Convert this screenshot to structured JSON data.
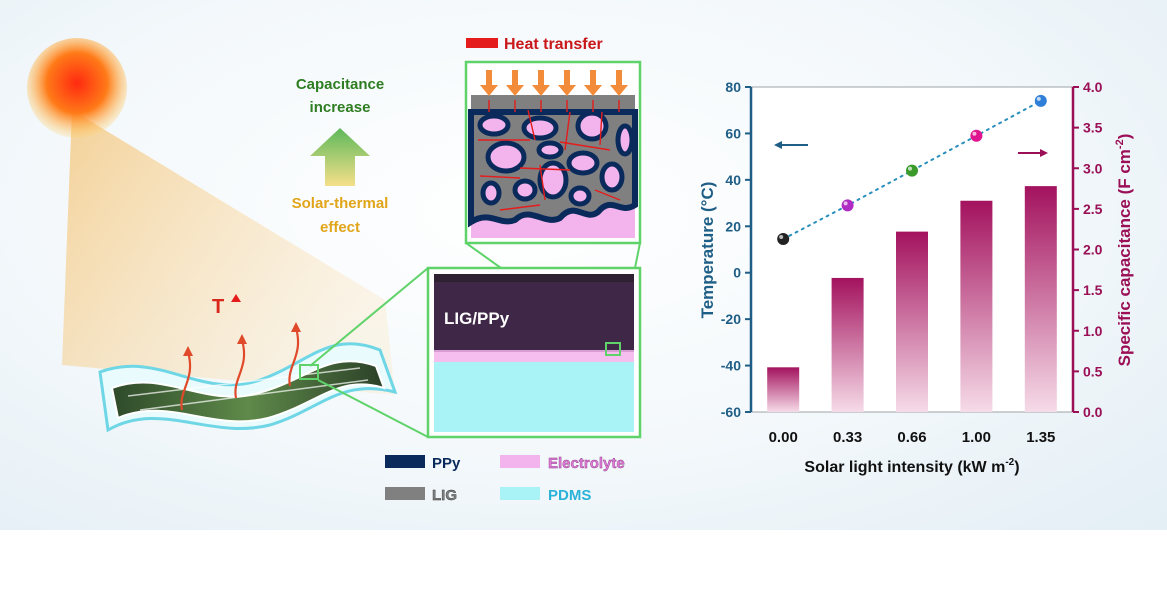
{
  "colors": {
    "ppy": "#0b2a5c",
    "lig": "#808080",
    "electrolyte": "#f3b3ec",
    "pdms": "#a9f2f5",
    "temp_axis": "#1f5e86",
    "cap_axis": "#9a0f55",
    "heat": "#e51c1c",
    "green_box": "#5fd36a"
  },
  "labels": {
    "heat_transfer": "Heat transfer",
    "capacitance_increase_line1": "Capacitance",
    "capacitance_increase_line2": "increase",
    "solar_thermal_line1": "Solar-thermal",
    "solar_thermal_line2": "effect",
    "temperature_rise": "T",
    "lig_ppy": "LIG/PPy"
  },
  "legend": [
    {
      "label": "PPy",
      "color": "#0b2a5c"
    },
    {
      "label": "Electrolyte",
      "color": "#f3b3ec"
    },
    {
      "label": "LIG",
      "color": "#808080"
    },
    {
      "label": "PDMS",
      "color": "#a9f2f5"
    }
  ],
  "icons": [
    "sun-icon",
    "up-arrow-icon",
    "heat-arrow-icon"
  ],
  "chart_data": {
    "type": "bar",
    "xlabel_main": "Solar light intensity (kW m",
    "xlabel_sup": "-2",
    "xlabel_close": ")",
    "categories": [
      "0.00",
      "0.33",
      "0.66",
      "1.00",
      "1.35"
    ],
    "y_left": {
      "label": "Temperature (°C)",
      "lim": [
        -60,
        80
      ],
      "ticks": [
        "80",
        "60",
        "40",
        "20",
        "0",
        "-20",
        "-40",
        "-60"
      ]
    },
    "y_right": {
      "label_main": "Specific capacitance (F cm",
      "label_sup": "-2",
      "label_close": ")",
      "lim": [
        0.0,
        4.0
      ],
      "ticks": [
        "4.0",
        "3.5",
        "3.0",
        "2.5",
        "2.0",
        "1.5",
        "1.0",
        "0.5",
        "0.0"
      ]
    },
    "series": [
      {
        "axis": "right",
        "kind": "bar",
        "values": [
          0.55,
          1.65,
          2.22,
          2.6,
          2.78
        ]
      },
      {
        "axis": "left",
        "kind": "scatter",
        "values": [
          14.5,
          29,
          44,
          59,
          74
        ],
        "point_colors": [
          "#222222",
          "#b02bc4",
          "#3a9a2a",
          "#e0148e",
          "#2f7fd8"
        ]
      }
    ],
    "grid": false
  }
}
